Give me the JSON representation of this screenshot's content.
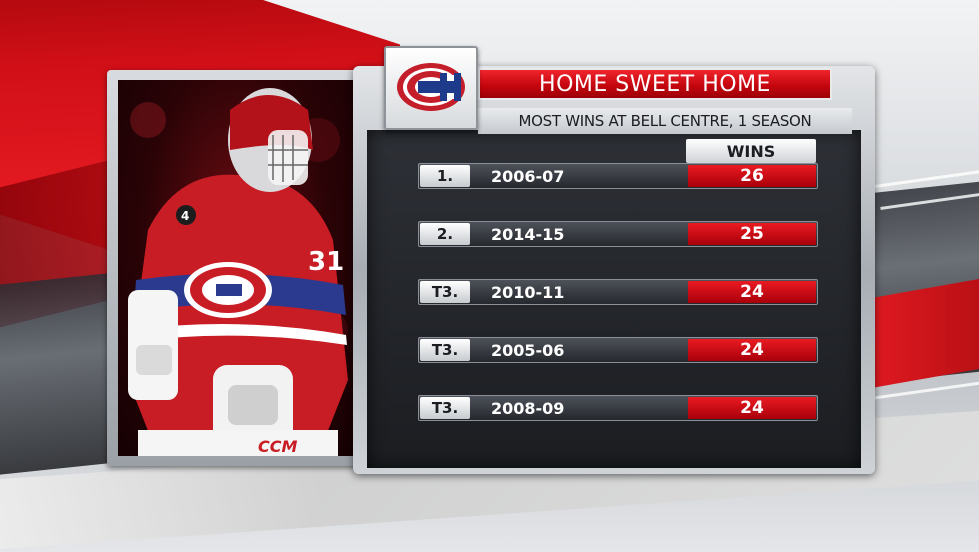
{
  "graphic": {
    "title": "HOME SWEET HOME",
    "subtitle": "MOST WINS AT BELL CENTRE, 1 SEASON",
    "wins_header": "WINS",
    "logo_icon": "habs-ch-logo-icon",
    "photo_icon": "goalie-photo",
    "jersey_number": "31",
    "patch_number": "4",
    "brand": "CCM"
  },
  "colors": {
    "accent_red": "#d10f17",
    "panel_dark": "#1e2024"
  },
  "rows": [
    {
      "rank": "1.",
      "season": "2006-07",
      "wins": "26"
    },
    {
      "rank": "2.",
      "season": "2014-15",
      "wins": "25"
    },
    {
      "rank": "T3.",
      "season": "2010-11",
      "wins": "24"
    },
    {
      "rank": "T3.",
      "season": "2005-06",
      "wins": "24"
    },
    {
      "rank": "T3.",
      "season": "2008-09",
      "wins": "24"
    }
  ]
}
